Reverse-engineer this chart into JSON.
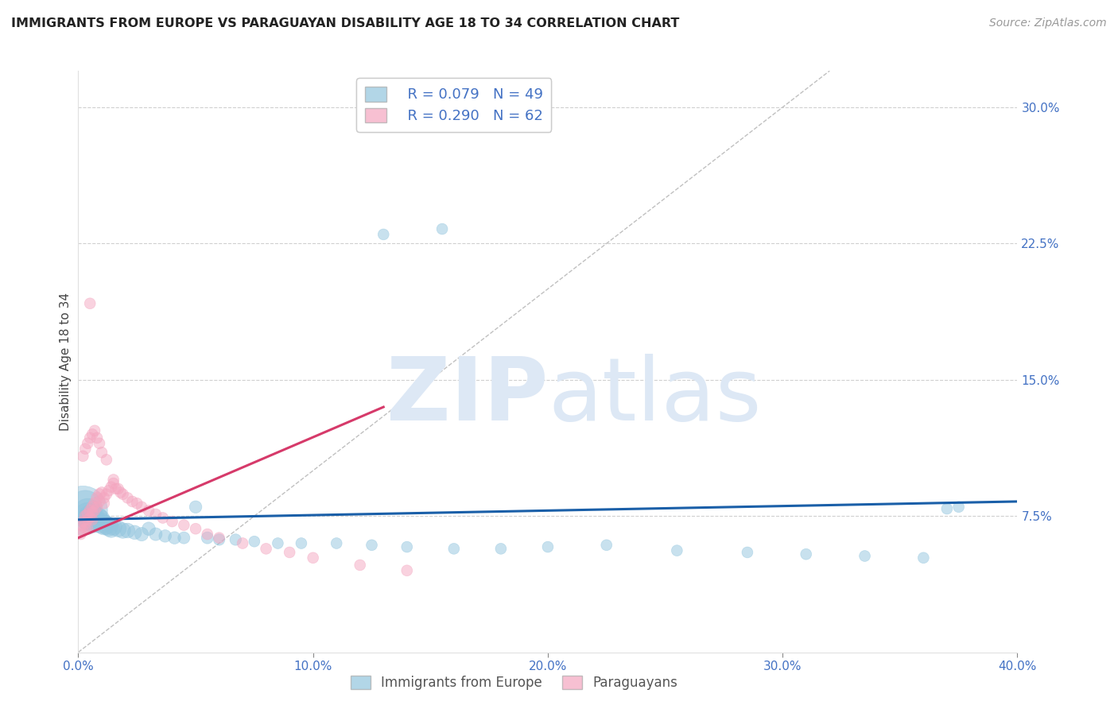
{
  "title": "IMMIGRANTS FROM EUROPE VS PARAGUAYAN DISABILITY AGE 18 TO 34 CORRELATION CHART",
  "source": "Source: ZipAtlas.com",
  "ylabel": "Disability Age 18 to 34",
  "xlim": [
    0.0,
    0.4
  ],
  "ylim": [
    0.0,
    0.32
  ],
  "xticks": [
    0.0,
    0.1,
    0.2,
    0.3,
    0.4
  ],
  "xticklabels": [
    "0.0%",
    "10.0%",
    "20.0%",
    "30.0%",
    "40.0%"
  ],
  "yticks": [
    0.075,
    0.15,
    0.225,
    0.3
  ],
  "yticklabels": [
    "7.5%",
    "15.0%",
    "22.5%",
    "30.0%"
  ],
  "legend_r1": "R = 0.079",
  "legend_n1": "N = 49",
  "legend_r2": "R = 0.290",
  "legend_n2": "N = 62",
  "blue_color": "#92c5de",
  "pink_color": "#f4a6c0",
  "trend_blue": "#1a5fa8",
  "trend_pink": "#d63a6a",
  "axis_color": "#4472c4",
  "grid_color": "#d0d0d0",
  "watermark_color": "#dde8f5",
  "blue_x": [
    0.002,
    0.003,
    0.004,
    0.004,
    0.005,
    0.005,
    0.006,
    0.007,
    0.008,
    0.009,
    0.01,
    0.011,
    0.012,
    0.013,
    0.014,
    0.015,
    0.017,
    0.019,
    0.021,
    0.024,
    0.027,
    0.03,
    0.033,
    0.037,
    0.041,
    0.045,
    0.05,
    0.055,
    0.06,
    0.067,
    0.075,
    0.085,
    0.095,
    0.11,
    0.125,
    0.14,
    0.16,
    0.18,
    0.2,
    0.225,
    0.255,
    0.285,
    0.31,
    0.335,
    0.36,
    0.37,
    0.375,
    0.13,
    0.155
  ],
  "blue_y": [
    0.078,
    0.08,
    0.077,
    0.075,
    0.074,
    0.073,
    0.075,
    0.072,
    0.074,
    0.073,
    0.071,
    0.07,
    0.07,
    0.069,
    0.068,
    0.069,
    0.068,
    0.067,
    0.067,
    0.066,
    0.065,
    0.068,
    0.065,
    0.064,
    0.063,
    0.063,
    0.08,
    0.063,
    0.062,
    0.062,
    0.061,
    0.06,
    0.06,
    0.06,
    0.059,
    0.058,
    0.057,
    0.057,
    0.058,
    0.059,
    0.056,
    0.055,
    0.054,
    0.053,
    0.052,
    0.079,
    0.08,
    0.23,
    0.233
  ],
  "blue_s": [
    220,
    100,
    70,
    65,
    55,
    50,
    48,
    45,
    42,
    40,
    38,
    35,
    32,
    30,
    28,
    26,
    24,
    22,
    20,
    18,
    17,
    16,
    15,
    14,
    14,
    13,
    14,
    13,
    12,
    12,
    11,
    11,
    11,
    11,
    11,
    11,
    11,
    11,
    11,
    11,
    11,
    11,
    11,
    11,
    11,
    11,
    11,
    11,
    11
  ],
  "pink_x": [
    0.001,
    0.001,
    0.002,
    0.002,
    0.003,
    0.003,
    0.003,
    0.004,
    0.004,
    0.004,
    0.005,
    0.005,
    0.006,
    0.006,
    0.006,
    0.007,
    0.007,
    0.008,
    0.008,
    0.009,
    0.009,
    0.01,
    0.011,
    0.011,
    0.012,
    0.013,
    0.014,
    0.015,
    0.016,
    0.017,
    0.018,
    0.019,
    0.021,
    0.023,
    0.025,
    0.027,
    0.03,
    0.033,
    0.036,
    0.04,
    0.045,
    0.05,
    0.055,
    0.06,
    0.07,
    0.08,
    0.09,
    0.1,
    0.12,
    0.14,
    0.002,
    0.003,
    0.004,
    0.005,
    0.006,
    0.007,
    0.008,
    0.009,
    0.01,
    0.012,
    0.015,
    0.005
  ],
  "pink_y": [
    0.07,
    0.065,
    0.072,
    0.067,
    0.075,
    0.071,
    0.068,
    0.076,
    0.073,
    0.068,
    0.078,
    0.074,
    0.08,
    0.077,
    0.073,
    0.082,
    0.078,
    0.085,
    0.08,
    0.087,
    0.083,
    0.088,
    0.085,
    0.082,
    0.087,
    0.089,
    0.091,
    0.093,
    0.09,
    0.09,
    0.088,
    0.087,
    0.085,
    0.083,
    0.082,
    0.08,
    0.078,
    0.076,
    0.074,
    0.072,
    0.07,
    0.068,
    0.065,
    0.063,
    0.06,
    0.057,
    0.055,
    0.052,
    0.048,
    0.045,
    0.108,
    0.112,
    0.115,
    0.118,
    0.12,
    0.122,
    0.118,
    0.115,
    0.11,
    0.106,
    0.095,
    0.192
  ],
  "pink_s": [
    11,
    11,
    11,
    11,
    12,
    11,
    11,
    12,
    11,
    11,
    12,
    11,
    12,
    11,
    11,
    12,
    11,
    12,
    11,
    12,
    11,
    11,
    11,
    11,
    11,
    11,
    11,
    11,
    11,
    11,
    11,
    11,
    11,
    11,
    11,
    11,
    11,
    11,
    11,
    11,
    11,
    11,
    11,
    11,
    11,
    11,
    11,
    11,
    11,
    11,
    11,
    11,
    11,
    11,
    11,
    11,
    11,
    11,
    11,
    11,
    11,
    11
  ],
  "blue_trend_x": [
    0.0,
    0.4
  ],
  "blue_trend_y": [
    0.073,
    0.083
  ],
  "pink_trend_x": [
    0.0,
    0.13
  ],
  "pink_trend_y": [
    0.063,
    0.135
  ]
}
